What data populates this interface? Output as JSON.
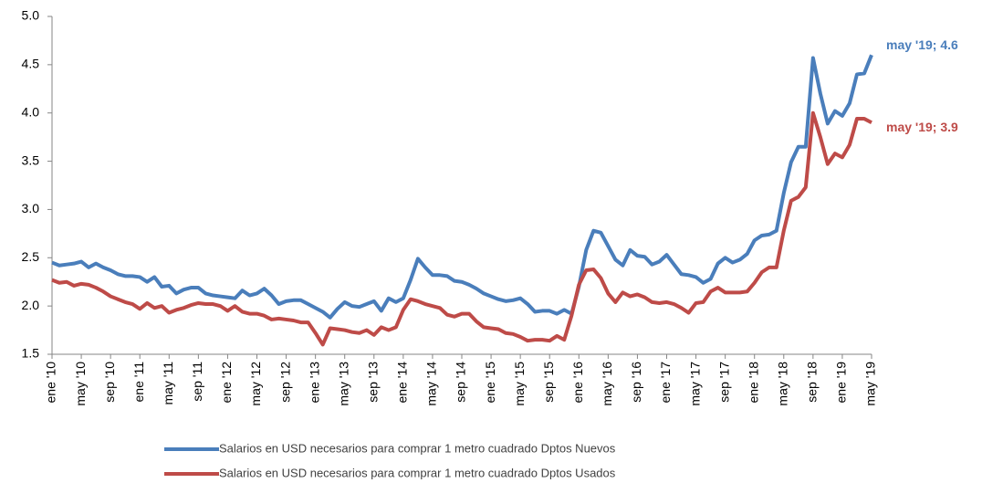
{
  "chart_data": {
    "type": "line",
    "categories": [
      "ene '10",
      null,
      null,
      null,
      "may '10",
      null,
      null,
      null,
      "sep '10",
      null,
      null,
      null,
      "ene '11",
      null,
      null,
      null,
      "may '11",
      null,
      null,
      null,
      "sep '11",
      null,
      null,
      null,
      "ene '12",
      null,
      null,
      null,
      "may '12",
      null,
      null,
      null,
      "sep '12",
      null,
      null,
      null,
      "ene '13",
      null,
      null,
      null,
      "may '13",
      null,
      null,
      null,
      "sep '13",
      null,
      null,
      null,
      "ene '14",
      null,
      null,
      null,
      "may '14",
      null,
      null,
      null,
      "sep '14",
      null,
      null,
      null,
      "ene '15",
      null,
      null,
      null,
      "may '15",
      null,
      null,
      null,
      "sep '15",
      null,
      null,
      null,
      "ene '16",
      null,
      null,
      null,
      "may '16",
      null,
      null,
      null,
      "sep '16",
      null,
      null,
      null,
      "ene '17",
      null,
      null,
      null,
      "may '17",
      null,
      null,
      null,
      "sep '17",
      null,
      null,
      null,
      "ene '18",
      null,
      null,
      null,
      "may '18",
      null,
      null,
      null,
      "sep '18",
      null,
      null,
      null,
      "ene '19",
      null,
      null,
      null,
      "may '19"
    ],
    "series": [
      {
        "name": "Salarios en USD necesarios para comprar 1 metro cuadrado Dptos Nuevos",
        "color": "#4a7ebb",
        "values": [
          2.45,
          2.42,
          2.43,
          2.44,
          2.46,
          2.4,
          2.44,
          2.4,
          2.37,
          2.33,
          2.31,
          2.31,
          2.3,
          2.25,
          2.3,
          2.2,
          2.21,
          2.13,
          2.17,
          2.19,
          2.19,
          2.13,
          2.11,
          2.1,
          2.09,
          2.08,
          2.16,
          2.11,
          2.13,
          2.18,
          2.11,
          2.02,
          2.05,
          2.06,
          2.06,
          2.02,
          1.98,
          1.94,
          1.88,
          1.97,
          2.04,
          2.0,
          1.99,
          2.02,
          2.05,
          1.95,
          2.08,
          2.04,
          2.08,
          2.27,
          2.49,
          2.4,
          2.32,
          2.32,
          2.31,
          2.26,
          2.25,
          2.22,
          2.18,
          2.13,
          2.1,
          2.07,
          2.05,
          2.06,
          2.08,
          2.02,
          1.94,
          1.95,
          1.95,
          1.92,
          1.96,
          1.92,
          2.2,
          2.58,
          2.78,
          2.76,
          2.62,
          2.48,
          2.42,
          2.58,
          2.52,
          2.51,
          2.43,
          2.46,
          2.53,
          2.43,
          2.33,
          2.32,
          2.3,
          2.24,
          2.28,
          2.44,
          2.5,
          2.45,
          2.48,
          2.54,
          2.68,
          2.73,
          2.74,
          2.78,
          3.17,
          3.49,
          3.65,
          3.65,
          4.57,
          4.2,
          3.89,
          4.02,
          3.97,
          4.1,
          4.4,
          4.41,
          4.6
        ]
      },
      {
        "name": "Salarios en USD necesarios para comprar 1 metro cuadrado Dptos Usados",
        "color": "#be4b48",
        "values": [
          2.27,
          2.24,
          2.25,
          2.21,
          2.23,
          2.22,
          2.19,
          2.15,
          2.1,
          2.07,
          2.04,
          2.02,
          1.97,
          2.03,
          1.98,
          2.0,
          1.93,
          1.96,
          1.98,
          2.01,
          2.03,
          2.02,
          2.02,
          2.0,
          1.95,
          2.0,
          1.94,
          1.92,
          1.92,
          1.9,
          1.86,
          1.87,
          1.86,
          1.85,
          1.83,
          1.83,
          1.72,
          1.6,
          1.77,
          1.76,
          1.75,
          1.73,
          1.72,
          1.75,
          1.7,
          1.78,
          1.75,
          1.78,
          1.96,
          2.07,
          2.05,
          2.02,
          2.0,
          1.98,
          1.91,
          1.89,
          1.92,
          1.92,
          1.84,
          1.78,
          1.77,
          1.76,
          1.72,
          1.71,
          1.68,
          1.64,
          1.65,
          1.65,
          1.64,
          1.69,
          1.65,
          1.9,
          2.22,
          2.37,
          2.38,
          2.29,
          2.13,
          2.04,
          2.14,
          2.1,
          2.12,
          2.09,
          2.04,
          2.03,
          2.04,
          2.02,
          1.98,
          1.93,
          2.03,
          2.04,
          2.15,
          2.19,
          2.14,
          2.14,
          2.14,
          2.15,
          2.24,
          2.35,
          2.4,
          2.4,
          2.78,
          3.09,
          3.13,
          3.23,
          4.0,
          3.75,
          3.47,
          3.58,
          3.54,
          3.67,
          3.94,
          3.94,
          3.9
        ]
      }
    ],
    "annotations": [
      "may '19; 4.6",
      "may '19; 3.9"
    ],
    "ylim": [
      1.5,
      5.0
    ],
    "yticks": [
      1.5,
      {
        "value": 2,
        "label": "2.0"
      },
      2.5,
      {
        "value": 3,
        "label": "3.0"
      },
      3.5,
      {
        "value": 4,
        "label": "4.0"
      },
      4.5,
      {
        "value": 5,
        "label": "5.0"
      }
    ],
    "grid": false
  }
}
